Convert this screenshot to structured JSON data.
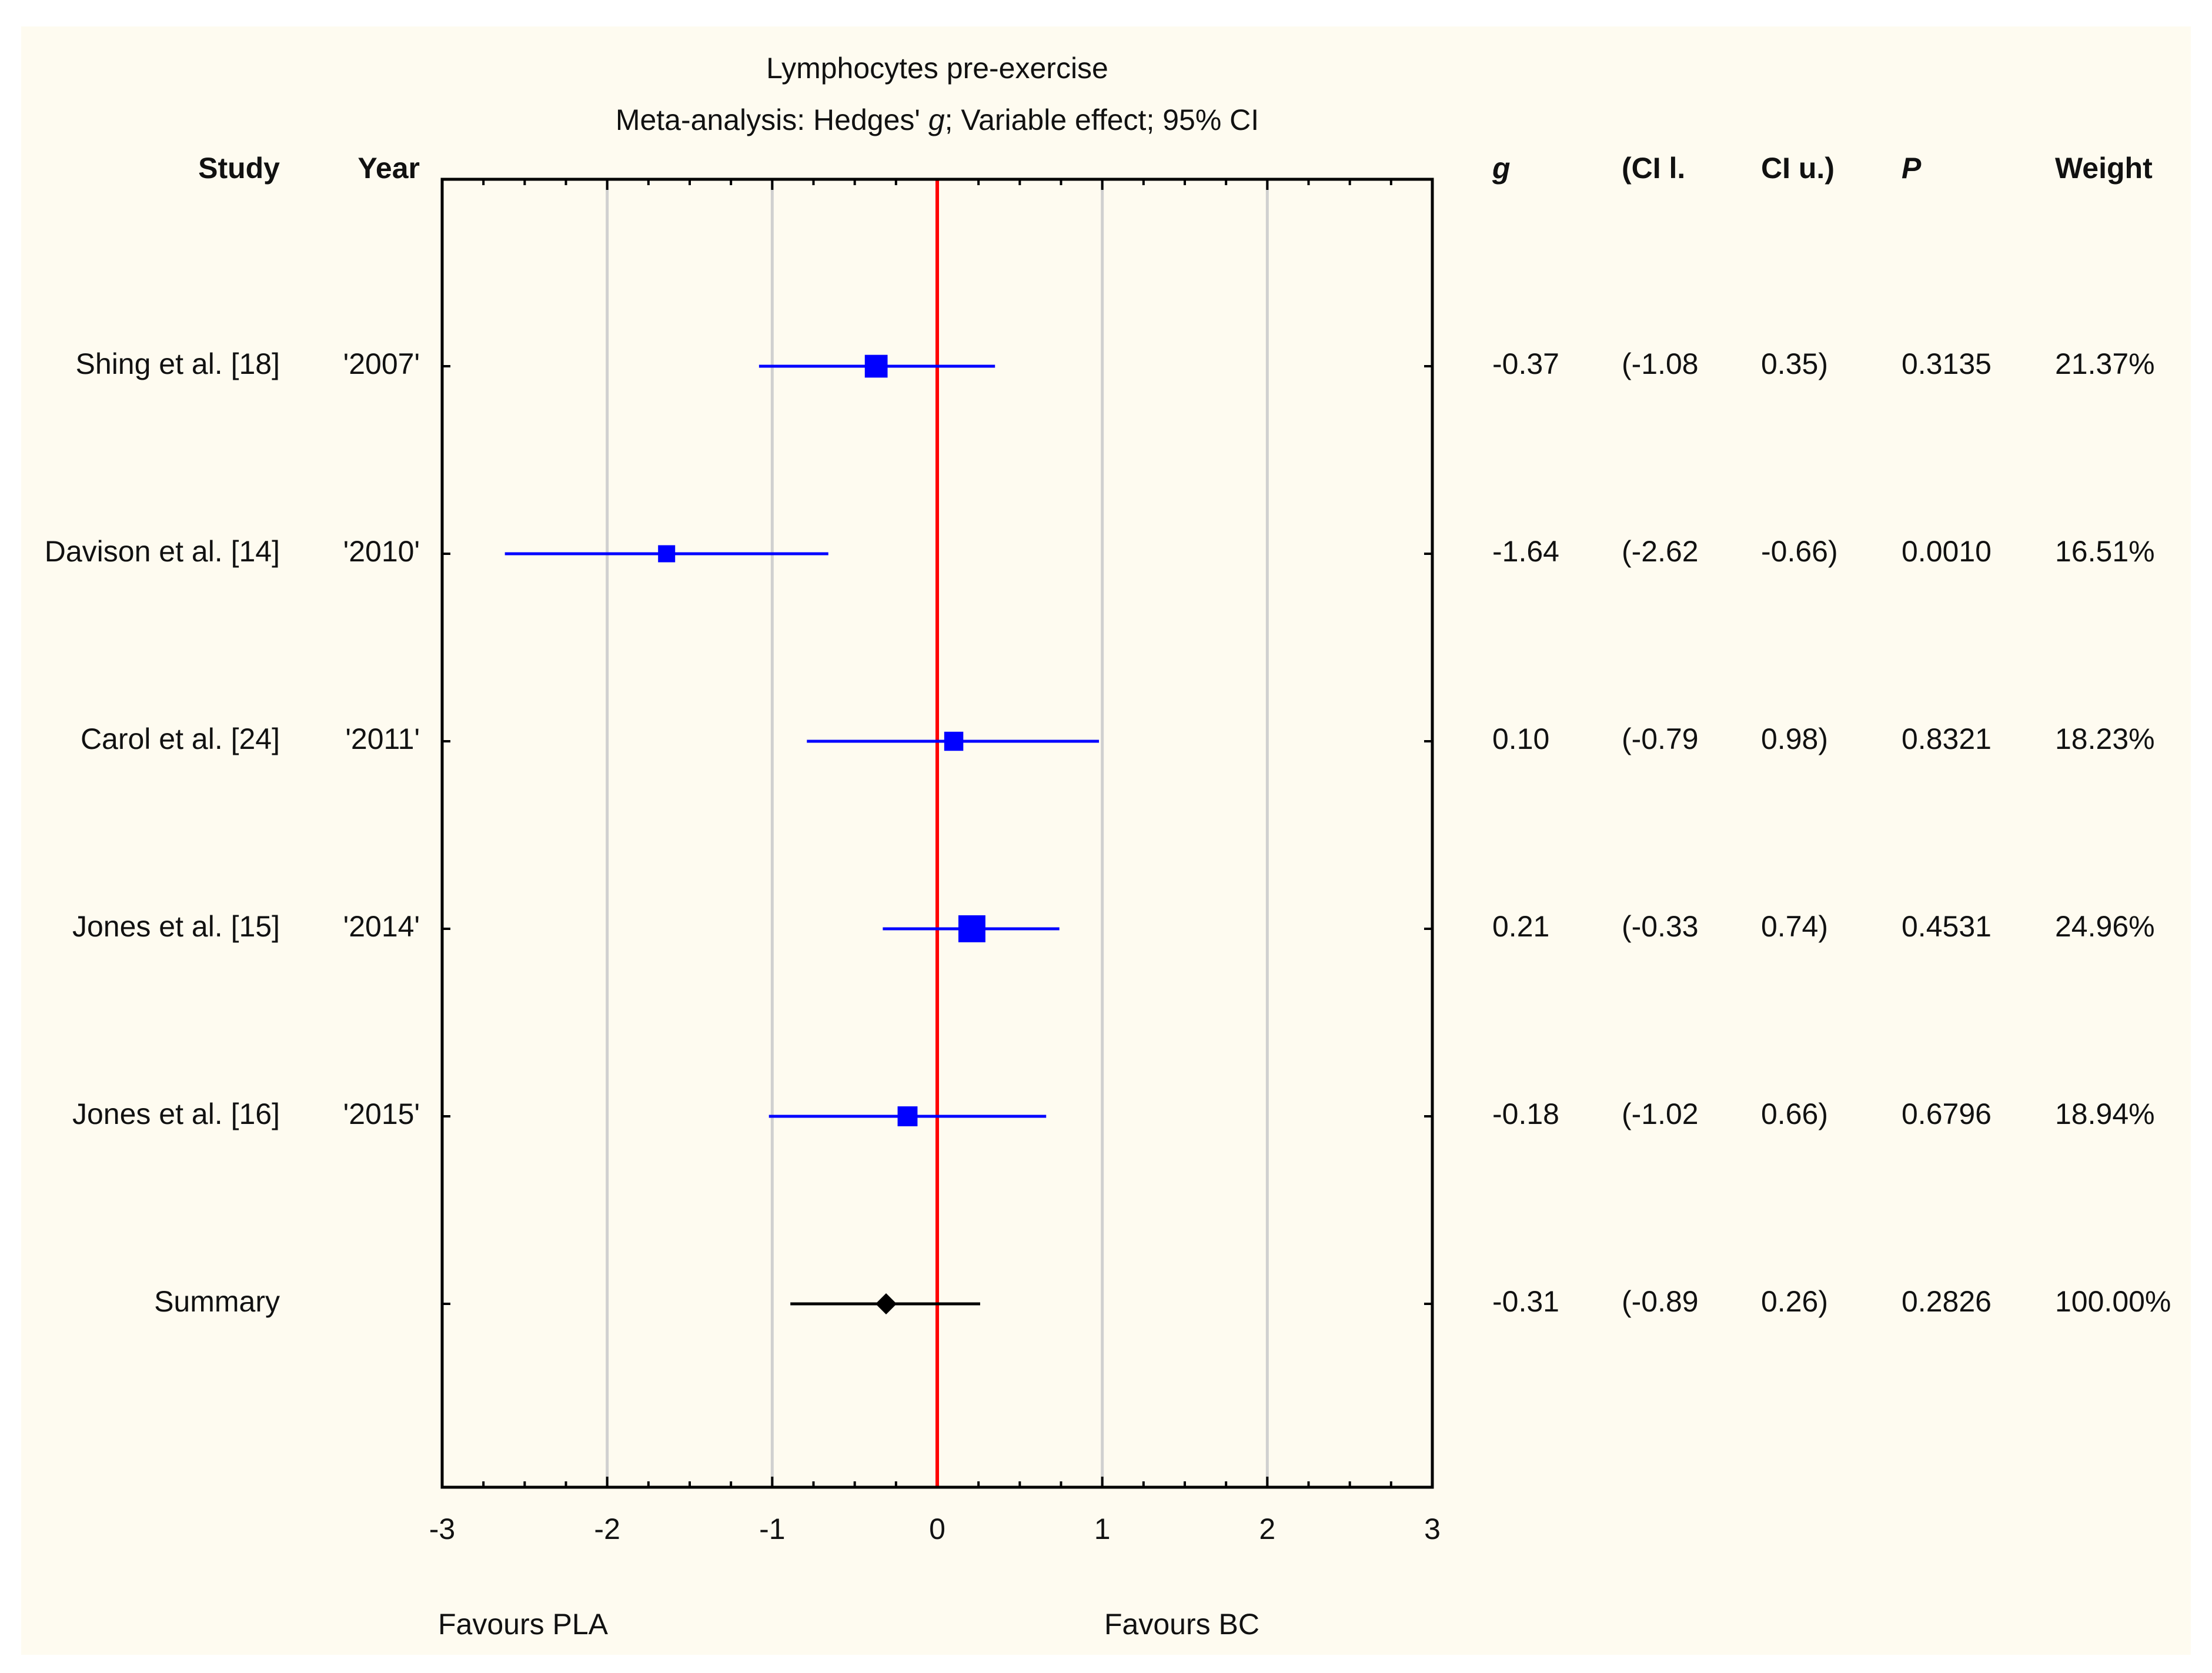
{
  "chart_data": {
    "type": "forest",
    "title": "Lymphocytes pre-exercise",
    "subtitle": {
      "prefix": "Meta-analysis: Hedges' ",
      "italic": "g",
      "suffix": "; Variable effect; 95% CI"
    },
    "xlim": [
      -3,
      3
    ],
    "x_ticks": [
      -3,
      -2,
      -1,
      0,
      1,
      2,
      3
    ],
    "gridlines_at": [
      -2,
      -1,
      1,
      2
    ],
    "reference_line": 0,
    "grid": true,
    "favours_left": "Favours PLA",
    "favours_right": "Favours BC",
    "headers": {
      "study": "Study",
      "year": "Year",
      "g": "g",
      "ci_lower": "(CI l.",
      "ci_upper": "CI u.)",
      "p": "P",
      "weight": "Weight"
    },
    "studies": [
      {
        "name": "Shing et al. [18]",
        "year": "'2007'",
        "g": -0.37,
        "ci_lower": -1.08,
        "ci_upper": 0.35,
        "g_text": "-0.37",
        "ci_lower_text": "(-1.08",
        "ci_upper_text": "0.35)",
        "p_text": "0.3135",
        "weight_text": "21.37%"
      },
      {
        "name": "Davison et al. [14]",
        "year": "'2010'",
        "g": -1.64,
        "ci_lower": -2.62,
        "ci_upper": -0.66,
        "g_text": "-1.64",
        "ci_lower_text": "(-2.62",
        "ci_upper_text": "-0.66)",
        "p_text": "0.0010",
        "weight_text": "16.51%"
      },
      {
        "name": "Carol et al. [24]",
        "year": "'2011'",
        "g": 0.1,
        "ci_lower": -0.79,
        "ci_upper": 0.98,
        "g_text": "0.10",
        "ci_lower_text": "(-0.79",
        "ci_upper_text": "0.98)",
        "p_text": "0.8321",
        "weight_text": "18.23%"
      },
      {
        "name": "Jones et al. [15]",
        "year": "'2014'",
        "g": 0.21,
        "ci_lower": -0.33,
        "ci_upper": 0.74,
        "g_text": "0.21",
        "ci_lower_text": "(-0.33",
        "ci_upper_text": "0.74)",
        "p_text": "0.4531",
        "weight_text": "24.96%"
      },
      {
        "name": "Jones et al. [16]",
        "year": "'2015'",
        "g": -0.18,
        "ci_lower": -1.02,
        "ci_upper": 0.66,
        "g_text": "-0.18",
        "ci_lower_text": "(-1.02",
        "ci_upper_text": "0.66)",
        "p_text": "0.6796",
        "weight_text": "18.94%"
      }
    ],
    "summary": {
      "name": "Summary",
      "year": "",
      "g": -0.31,
      "ci_lower": -0.89,
      "ci_upper": 0.26,
      "g_text": "-0.31",
      "ci_lower_text": "(-0.89",
      "ci_upper_text": "0.26)",
      "p_text": "0.2826",
      "weight_text": "100.00%"
    },
    "colors": {
      "background": "#fefbf0",
      "study_marker": "#0000ff",
      "summary_marker": "#000000",
      "reference_line": "#ff0000",
      "gridline": "#d0d0d0",
      "frame": "#000000",
      "text": "#111111"
    }
  }
}
